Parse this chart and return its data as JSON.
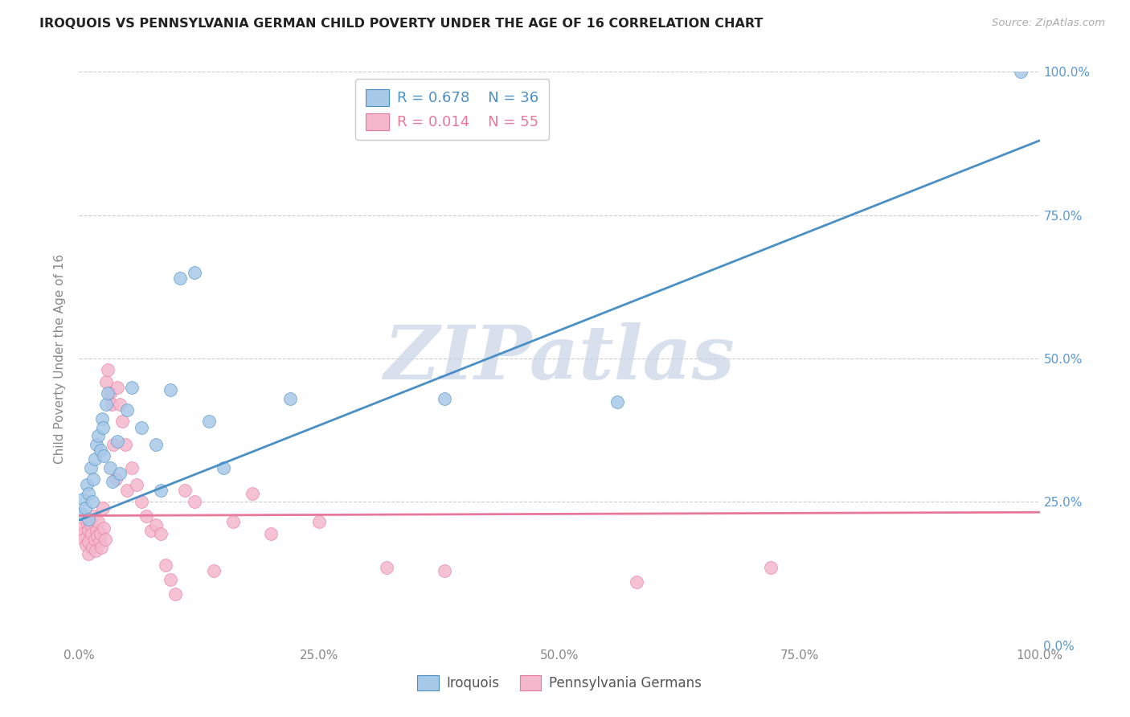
{
  "title": "IROQUOIS VS PENNSYLVANIA GERMAN CHILD POVERTY UNDER THE AGE OF 16 CORRELATION CHART",
  "source": "Source: ZipAtlas.com",
  "ylabel": "Child Poverty Under the Age of 16",
  "xlim": [
    0,
    1.0
  ],
  "ylim": [
    0,
    1.0
  ],
  "xticks": [
    0.0,
    0.25,
    0.5,
    0.75,
    1.0
  ],
  "yticks": [
    0.0,
    0.25,
    0.5,
    0.75,
    1.0
  ],
  "iroquois_color": "#a8c8e8",
  "penn_german_color": "#f4b8cc",
  "iroquois_line_color": "#4a90c4",
  "penn_german_line_color": "#e8789a",
  "grid_color": "#cccccc",
  "background_color": "#ffffff",
  "watermark_text": "ZIPatlas",
  "watermark_color": "#c8d4e8",
  "R_iroquois": "0.678",
  "N_iroquois": "36",
  "R_penn": "0.014",
  "N_penn": "55",
  "ytick_color": "#5898d4",
  "xtick_color": "#888888",
  "ylabel_color": "#888888",
  "iroquois_x": [
    0.002,
    0.004,
    0.006,
    0.008,
    0.01,
    0.01,
    0.012,
    0.014,
    0.015,
    0.016,
    0.018,
    0.02,
    0.022,
    0.024,
    0.025,
    0.026,
    0.028,
    0.03,
    0.032,
    0.035,
    0.04,
    0.042,
    0.05,
    0.055,
    0.065,
    0.08,
    0.085,
    0.095,
    0.105,
    0.12,
    0.135,
    0.15,
    0.22,
    0.38,
    0.56,
    0.98
  ],
  "iroquois_y": [
    0.23,
    0.255,
    0.24,
    0.28,
    0.265,
    0.22,
    0.31,
    0.25,
    0.29,
    0.325,
    0.35,
    0.365,
    0.34,
    0.395,
    0.38,
    0.33,
    0.42,
    0.44,
    0.31,
    0.285,
    0.355,
    0.3,
    0.41,
    0.45,
    0.38,
    0.35,
    0.27,
    0.445,
    0.64,
    0.65,
    0.39,
    0.31,
    0.43,
    0.43,
    0.425,
    1.0
  ],
  "penn_x": [
    0.002,
    0.004,
    0.005,
    0.007,
    0.008,
    0.01,
    0.01,
    0.01,
    0.012,
    0.013,
    0.014,
    0.015,
    0.016,
    0.017,
    0.018,
    0.019,
    0.02,
    0.021,
    0.022,
    0.023,
    0.025,
    0.026,
    0.027,
    0.028,
    0.03,
    0.032,
    0.034,
    0.036,
    0.038,
    0.04,
    0.042,
    0.045,
    0.048,
    0.05,
    0.055,
    0.06,
    0.065,
    0.07,
    0.075,
    0.08,
    0.085,
    0.09,
    0.095,
    0.1,
    0.11,
    0.12,
    0.14,
    0.16,
    0.18,
    0.2,
    0.25,
    0.32,
    0.38,
    0.58,
    0.72
  ],
  "penn_y": [
    0.205,
    0.195,
    0.185,
    0.175,
    0.215,
    0.2,
    0.18,
    0.16,
    0.21,
    0.195,
    0.17,
    0.225,
    0.185,
    0.165,
    0.2,
    0.19,
    0.215,
    0.18,
    0.195,
    0.17,
    0.24,
    0.205,
    0.185,
    0.46,
    0.48,
    0.44,
    0.42,
    0.35,
    0.29,
    0.45,
    0.42,
    0.39,
    0.35,
    0.27,
    0.31,
    0.28,
    0.25,
    0.225,
    0.2,
    0.21,
    0.195,
    0.14,
    0.115,
    0.09,
    0.27,
    0.25,
    0.13,
    0.215,
    0.265,
    0.195,
    0.215,
    0.135,
    0.13,
    0.11,
    0.135
  ],
  "iroquois_line_x0": 0.0,
  "iroquois_line_y0": 0.218,
  "iroquois_line_x1": 1.0,
  "iroquois_line_y1": 0.88,
  "penn_line_x0": 0.0,
  "penn_line_y0": 0.226,
  "penn_line_x1": 1.0,
  "penn_line_y1": 0.232
}
